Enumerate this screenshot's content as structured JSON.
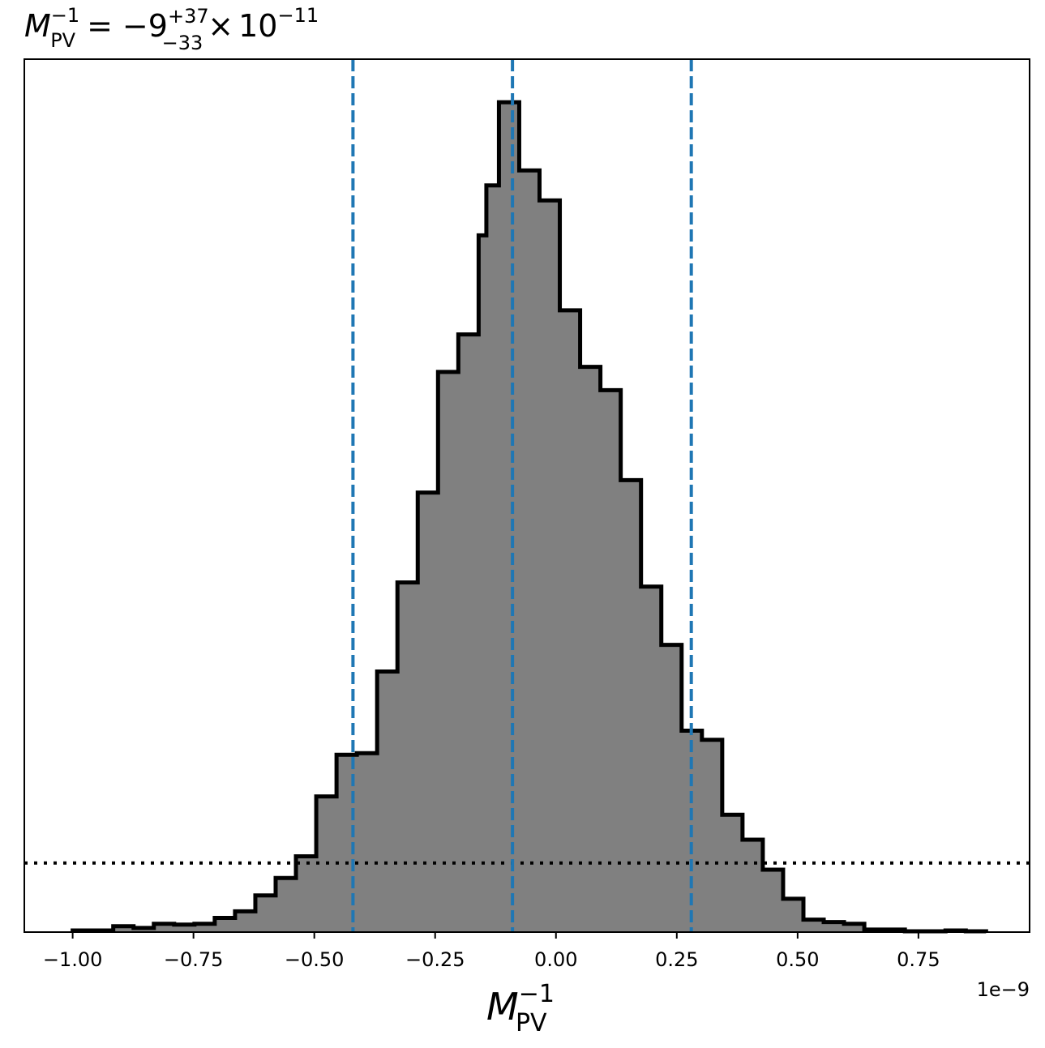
{
  "chart_data": {
    "type": "histogram",
    "title": {
      "symbol": "M",
      "symbol_sub": "PV",
      "symbol_sup": "−1",
      "equals": "=",
      "median": "−9",
      "err_plus": "+37",
      "err_minus": "−33",
      "times": "×",
      "scale_base": "10",
      "scale_exp": "−11"
    },
    "xlabel": {
      "symbol": "M",
      "sub": "PV",
      "sup": "−1"
    },
    "x_offset_label": "1e−9",
    "xlim": [
      -1.1,
      0.98
    ],
    "ylim": [
      0,
      1.0
    ],
    "xticks": [
      -1.0,
      -0.75,
      -0.5,
      -0.25,
      0.0,
      0.25,
      0.5,
      0.75
    ],
    "xtick_labels": [
      "−1.00",
      "−0.75",
      "−0.50",
      "−0.25",
      "0.00",
      "0.25",
      "0.50",
      "0.75"
    ],
    "bin_edges": [
      -1.0,
      -0.958,
      -0.916,
      -0.874,
      -0.832,
      -0.79,
      -0.748,
      -0.706,
      -0.664,
      -0.622,
      -0.58,
      -0.538,
      -0.496,
      -0.454,
      -0.412,
      -0.37,
      -0.328,
      -0.286,
      -0.244,
      -0.202,
      -0.16,
      -0.144,
      -0.118,
      -0.076,
      -0.034,
      0.008,
      0.05,
      0.092,
      0.134,
      0.176,
      0.218,
      0.26,
      0.302,
      0.344,
      0.386,
      0.428,
      0.47,
      0.512,
      0.554,
      0.596,
      0.638,
      0.68,
      0.722,
      0.764,
      0.806,
      0.848,
      0.89
    ],
    "counts": [
      0.002,
      0.002,
      0.007,
      0.005,
      0.01,
      0.009,
      0.01,
      0.017,
      0.025,
      0.044,
      0.065,
      0.091,
      0.163,
      0.213,
      0.215,
      0.313,
      0.42,
      0.528,
      0.673,
      0.718,
      0.837,
      0.897,
      0.997,
      0.915,
      0.879,
      0.747,
      0.679,
      0.651,
      0.543,
      0.415,
      0.345,
      0.242,
      0.231,
      0.141,
      0.111,
      0.075,
      0.04,
      0.015,
      0.012,
      0.01,
      0.003,
      0.003,
      0.001,
      0.001,
      0.002,
      0.001
    ],
    "quantile_lines": [
      -0.42,
      -0.09,
      0.28
    ],
    "reference_level": 0.083,
    "colors": {
      "fill": "#808080",
      "edge": "#000000",
      "quantile": "#1f77b4",
      "reference": "#000000"
    },
    "grid": false,
    "yticks_visible": false
  }
}
